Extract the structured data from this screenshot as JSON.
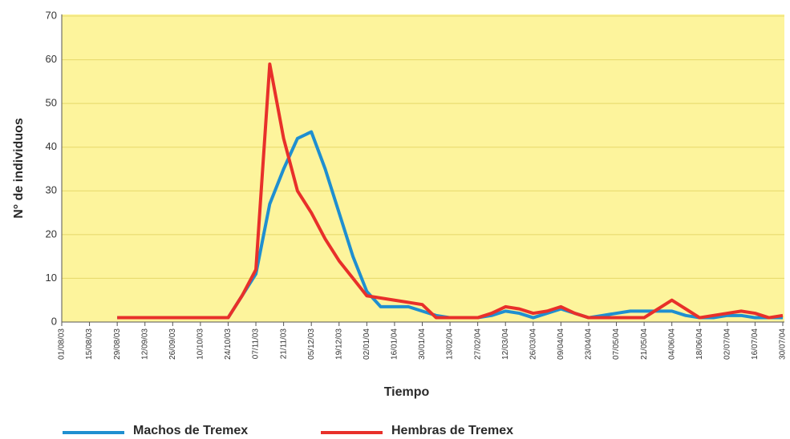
{
  "chart_data": {
    "type": "line",
    "x_label": "Tiempo",
    "y_label": "N° de individuos",
    "categories": [
      "01/08/03",
      null,
      "15/08/03",
      null,
      "29/08/03",
      null,
      "12/09/03",
      null,
      "26/09/03",
      null,
      "10/10/03",
      null,
      "24/10/03",
      null,
      "07/11/03",
      null,
      "21/11/03",
      null,
      "05/12/03",
      null,
      "19/12/03",
      null,
      "02/01/04",
      null,
      "16/01/04",
      null,
      "30/01/04",
      null,
      "13/02/04",
      null,
      "27/02/04",
      null,
      "12/03/04",
      null,
      "26/03/04",
      null,
      "09/04/04",
      null,
      "23/04/04",
      null,
      "07/05/04",
      null,
      "21/05/04",
      null,
      "04/06/04",
      null,
      "18/06/04",
      null,
      "02/07/04",
      null,
      "16/07/04",
      null,
      "30/07/04"
    ],
    "series": [
      {
        "name": "Machos de Tremex",
        "color": "#1f8fd0",
        "values": [
          null,
          null,
          null,
          null,
          1,
          1,
          1,
          1,
          1,
          1,
          1,
          1,
          1,
          6,
          11,
          27,
          35,
          42,
          43.5,
          35,
          25,
          15,
          7,
          3.5,
          3.5,
          3.5,
          2.5,
          1.5,
          1,
          1,
          1,
          1.5,
          2.5,
          2,
          1,
          2,
          3,
          2,
          1,
          1.5,
          2,
          2.5,
          2.5,
          2.5,
          2.5,
          1.5,
          1,
          1,
          1.5,
          1.5,
          1,
          1,
          1
        ]
      },
      {
        "name": "Hembras de Tremex",
        "color": "#e8302a",
        "values": [
          null,
          null,
          null,
          null,
          1,
          1,
          1,
          1,
          1,
          1,
          1,
          1,
          1,
          6,
          12,
          59,
          42,
          30,
          25,
          19,
          14,
          10,
          6,
          5.5,
          5,
          4.5,
          4,
          1,
          1,
          1,
          1,
          2,
          3.5,
          3,
          2,
          2.5,
          3.5,
          2,
          1,
          1,
          1,
          1,
          1,
          3,
          5,
          3,
          1,
          1.5,
          2,
          2.5,
          2,
          1,
          1.5
        ]
      }
    ],
    "ylim": [
      0,
      70
    ],
    "yticks": [
      0,
      10,
      20,
      30,
      40,
      50,
      60,
      70
    ],
    "grid": true
  }
}
